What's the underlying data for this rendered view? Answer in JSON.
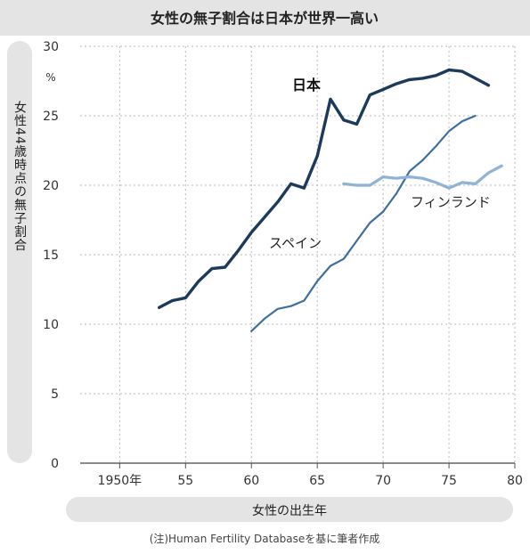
{
  "chart_data": {
    "type": "line",
    "title": "女性の無子割合は日本が世界一高い",
    "xlabel": "女性の出生年",
    "ylabel": "女性44歳時点の無子割合",
    "y_unit": "%",
    "xlim": [
      1947,
      1980
    ],
    "ylim": [
      0,
      30
    ],
    "x_ticks": [
      {
        "value": 1950,
        "label": "1950年"
      },
      {
        "value": 1955,
        "label": "55"
      },
      {
        "value": 1960,
        "label": "60"
      },
      {
        "value": 1965,
        "label": "65"
      },
      {
        "value": 1970,
        "label": "70"
      },
      {
        "value": 1975,
        "label": "75"
      },
      {
        "value": 1980,
        "label": "80"
      }
    ],
    "y_ticks": [
      {
        "value": 0,
        "label": "0"
      },
      {
        "value": 5,
        "label": "5"
      },
      {
        "value": 10,
        "label": "10"
      },
      {
        "value": 15,
        "label": "15"
      },
      {
        "value": 20,
        "label": "20"
      },
      {
        "value": 25,
        "label": "25"
      },
      {
        "value": 30,
        "label": "30"
      }
    ],
    "grid": true,
    "series": [
      {
        "name": "日本",
        "color": "#1d3a5c",
        "x": [
          1953,
          1954,
          1955,
          1956,
          1957,
          1958,
          1959,
          1960,
          1961,
          1962,
          1963,
          1964,
          1965,
          1966,
          1967,
          1968,
          1969,
          1970,
          1971,
          1972,
          1973,
          1974,
          1975,
          1976,
          1977,
          1978
        ],
        "y": [
          11.2,
          11.7,
          11.9,
          13.1,
          14.0,
          14.1,
          15.3,
          16.6,
          17.7,
          18.8,
          20.1,
          19.8,
          22.1,
          26.2,
          24.7,
          24.4,
          26.5,
          26.9,
          27.3,
          27.6,
          27.7,
          27.9,
          28.3,
          28.2,
          27.7,
          27.2
        ]
      },
      {
        "name": "スペイン",
        "color": "#3f6f9e",
        "x": [
          1960,
          1961,
          1962,
          1963,
          1964,
          1965,
          1966,
          1967,
          1968,
          1969,
          1970,
          1971,
          1972,
          1973,
          1974,
          1975,
          1976,
          1977
        ],
        "y": [
          9.5,
          10.4,
          11.1,
          11.3,
          11.7,
          13.1,
          14.2,
          14.7,
          16.0,
          17.3,
          18.1,
          19.4,
          21.0,
          21.8,
          22.8,
          23.9,
          24.6,
          25.0
        ]
      },
      {
        "name": "フィンランド",
        "color": "#8fb3d6",
        "x": [
          1967,
          1968,
          1969,
          1970,
          1971,
          1972,
          1973,
          1974,
          1975,
          1976,
          1977,
          1978,
          1979
        ],
        "y": [
          20.1,
          20.0,
          20.0,
          20.6,
          20.5,
          20.6,
          20.5,
          20.2,
          19.8,
          20.2,
          20.1,
          20.9,
          21.4
        ]
      }
    ],
    "note": "(注)Human Fertility Databaseを基に筆者作成"
  }
}
